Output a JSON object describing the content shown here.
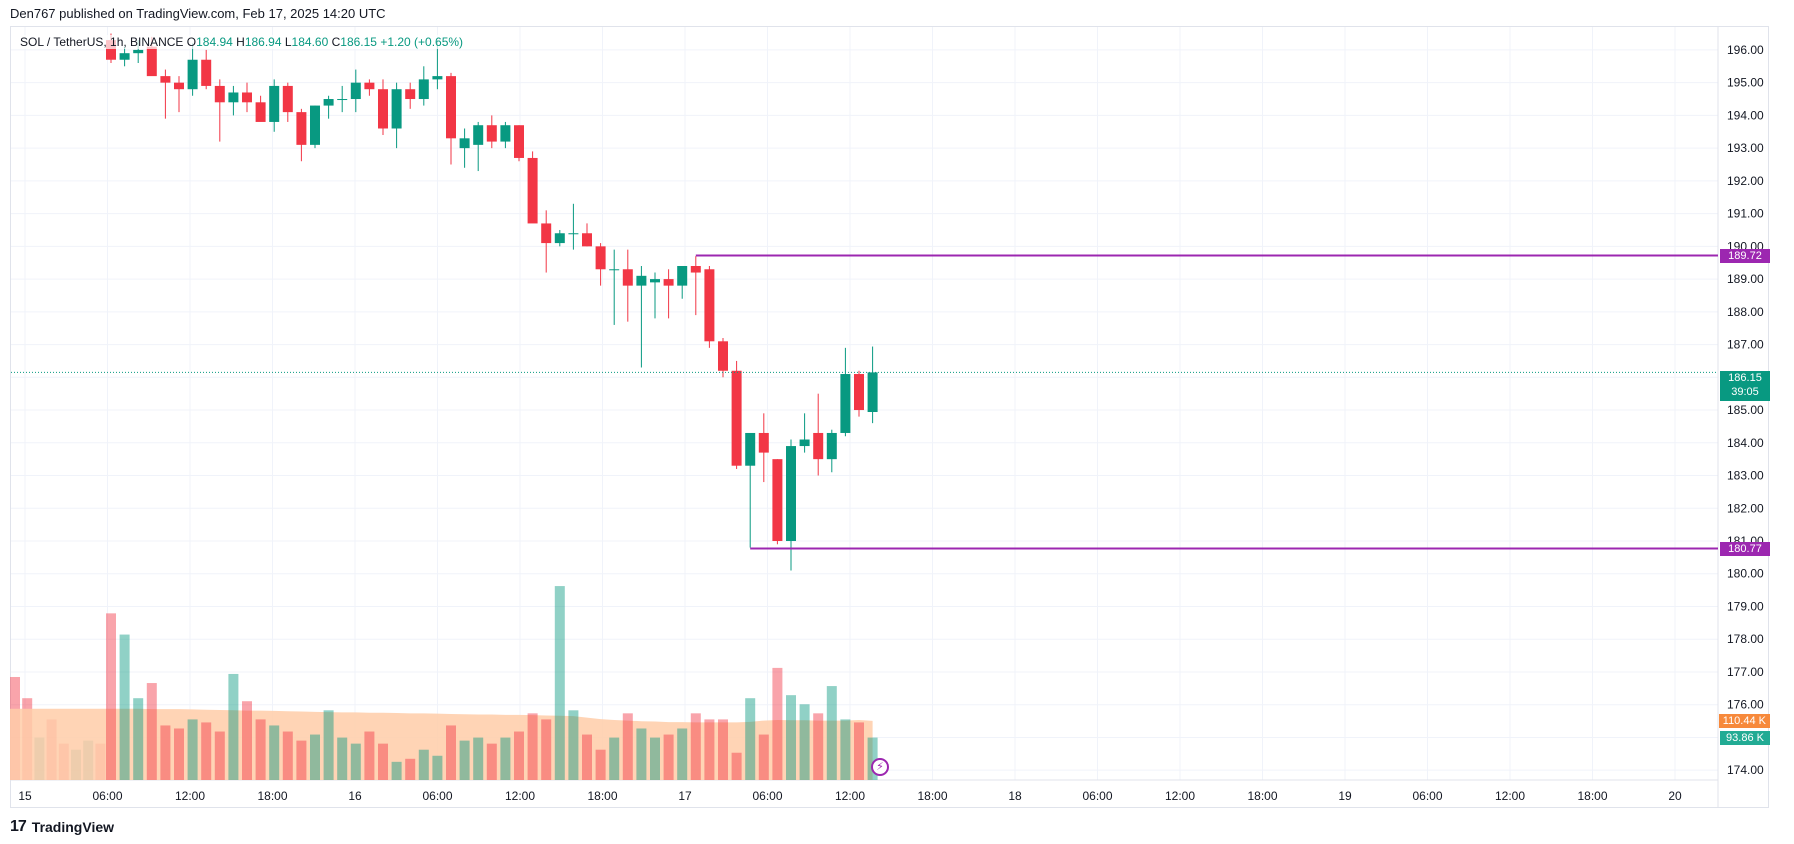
{
  "header": {
    "publisher_line": "Den767 published on TradingView.com, Feb 17, 2025 14:20 UTC"
  },
  "legend": {
    "symbol": "SOL / TetherUS, 1h, BINANCE",
    "open_label": "O",
    "open": "184.94",
    "high_label": "H",
    "high": "186.94",
    "low_label": "L",
    "low": "184.60",
    "close_label": "C",
    "close": "186.15",
    "change": "+1.20 (+0.65%)"
  },
  "footer": {
    "brand": "TradingView",
    "logo_glyph": "17"
  },
  "colors": {
    "up": "#089981",
    "down": "#f23645",
    "level_line": "#9c27b0",
    "volume_ma": "#ffcca8",
    "volume_ma_tag": "#f7893b",
    "grid": "#f0f3fa"
  },
  "chart_data": {
    "type": "candlestick",
    "symbol": "SOL / TetherUS",
    "interval": "1h",
    "exchange": "BINANCE",
    "ylim": [
      173.7,
      196.7
    ],
    "y_ticks": [
      "196.00",
      "195.00",
      "194.00",
      "193.00",
      "192.00",
      "191.00",
      "190.00",
      "189.00",
      "188.00",
      "187.00",
      "186.00",
      "185.00",
      "184.00",
      "183.00",
      "182.00",
      "181.00",
      "180.00",
      "179.00",
      "178.00",
      "177.00",
      "176.00",
      "175.00",
      "174.00"
    ],
    "x_ticks": [
      "15",
      "06:00",
      "12:00",
      "18:00",
      "16",
      "06:00",
      "12:00",
      "18:00",
      "17",
      "06:00",
      "12:00",
      "18:00",
      "18",
      "06:00",
      "12:00",
      "18:00",
      "19",
      "06:00",
      "12:00",
      "18:00",
      "20"
    ],
    "grid": true,
    "candles": [
      {
        "o": 196.3,
        "h": 196.5,
        "l": 195.6,
        "c": 195.7
      },
      {
        "o": 195.7,
        "h": 196.1,
        "l": 195.5,
        "c": 195.9
      },
      {
        "o": 195.9,
        "h": 196.3,
        "l": 195.6,
        "c": 196.0
      },
      {
        "o": 196.1,
        "h": 196.4,
        "l": 195.4,
        "c": 195.2
      },
      {
        "o": 195.2,
        "h": 195.4,
        "l": 193.9,
        "c": 195.0
      },
      {
        "o": 195.0,
        "h": 195.2,
        "l": 194.1,
        "c": 194.8
      },
      {
        "o": 194.8,
        "h": 196.2,
        "l": 194.6,
        "c": 195.7
      },
      {
        "o": 195.7,
        "h": 196.0,
        "l": 194.8,
        "c": 194.9
      },
      {
        "o": 194.9,
        "h": 195.1,
        "l": 193.2,
        "c": 194.4
      },
      {
        "o": 194.4,
        "h": 194.9,
        "l": 194.0,
        "c": 194.7
      },
      {
        "o": 194.7,
        "h": 195.0,
        "l": 194.1,
        "c": 194.4
      },
      {
        "o": 194.4,
        "h": 194.6,
        "l": 193.9,
        "c": 193.8
      },
      {
        "o": 193.8,
        "h": 195.1,
        "l": 193.5,
        "c": 194.9
      },
      {
        "o": 194.9,
        "h": 195.0,
        "l": 193.8,
        "c": 194.1
      },
      {
        "o": 194.1,
        "h": 194.2,
        "l": 192.6,
        "c": 193.1
      },
      {
        "o": 193.1,
        "h": 194.3,
        "l": 193.0,
        "c": 194.3
      },
      {
        "o": 194.3,
        "h": 194.6,
        "l": 193.9,
        "c": 194.5
      },
      {
        "o": 194.5,
        "h": 194.9,
        "l": 194.1,
        "c": 194.5
      },
      {
        "o": 194.5,
        "h": 195.4,
        "l": 194.1,
        "c": 195.0
      },
      {
        "o": 195.0,
        "h": 195.1,
        "l": 194.6,
        "c": 194.8
      },
      {
        "o": 194.8,
        "h": 195.1,
        "l": 193.4,
        "c": 193.6
      },
      {
        "o": 193.6,
        "h": 195.0,
        "l": 193.0,
        "c": 194.8
      },
      {
        "o": 194.8,
        "h": 195.0,
        "l": 194.2,
        "c": 194.5
      },
      {
        "o": 194.5,
        "h": 195.5,
        "l": 194.3,
        "c": 195.1
      },
      {
        "o": 195.1,
        "h": 196.3,
        "l": 194.8,
        "c": 195.2
      },
      {
        "o": 195.2,
        "h": 195.3,
        "l": 192.5,
        "c": 193.3
      },
      {
        "o": 193.0,
        "h": 193.6,
        "l": 192.4,
        "c": 193.3
      },
      {
        "o": 193.1,
        "h": 193.8,
        "l": 192.3,
        "c": 193.7
      },
      {
        "o": 193.7,
        "h": 194.0,
        "l": 193.0,
        "c": 193.2
      },
      {
        "o": 193.2,
        "h": 193.8,
        "l": 193.0,
        "c": 193.7
      },
      {
        "o": 193.7,
        "h": 193.7,
        "l": 192.6,
        "c": 192.7
      },
      {
        "o": 192.7,
        "h": 192.9,
        "l": 190.8,
        "c": 190.7
      },
      {
        "o": 190.7,
        "h": 191.1,
        "l": 189.2,
        "c": 190.1
      },
      {
        "o": 190.1,
        "h": 190.5,
        "l": 190.0,
        "c": 190.4
      },
      {
        "o": 190.4,
        "h": 191.3,
        "l": 189.9,
        "c": 190.4
      },
      {
        "o": 190.4,
        "h": 190.7,
        "l": 190.0,
        "c": 190.0
      },
      {
        "o": 190.0,
        "h": 190.1,
        "l": 188.8,
        "c": 189.3
      },
      {
        "o": 189.3,
        "h": 189.9,
        "l": 187.6,
        "c": 189.3
      },
      {
        "o": 189.3,
        "h": 189.9,
        "l": 187.7,
        "c": 188.8
      },
      {
        "o": 188.8,
        "h": 189.4,
        "l": 186.3,
        "c": 189.1
      },
      {
        "o": 188.9,
        "h": 189.2,
        "l": 187.8,
        "c": 189.0
      },
      {
        "o": 189.0,
        "h": 189.3,
        "l": 187.8,
        "c": 188.8
      },
      {
        "o": 188.8,
        "h": 189.2,
        "l": 188.4,
        "c": 189.4
      },
      {
        "o": 189.4,
        "h": 189.7,
        "l": 187.9,
        "c": 189.2
      },
      {
        "o": 189.3,
        "h": 189.4,
        "l": 186.9,
        "c": 187.1
      },
      {
        "o": 187.1,
        "h": 187.2,
        "l": 186.0,
        "c": 186.2
      },
      {
        "o": 186.2,
        "h": 186.5,
        "l": 183.2,
        "c": 183.3
      },
      {
        "o": 183.3,
        "h": 184.2,
        "l": 180.8,
        "c": 184.3
      },
      {
        "o": 184.3,
        "h": 184.9,
        "l": 182.8,
        "c": 183.7
      },
      {
        "o": 183.5,
        "h": 183.5,
        "l": 180.9,
        "c": 181.0
      },
      {
        "o": 181.0,
        "h": 184.1,
        "l": 180.1,
        "c": 183.9
      },
      {
        "o": 183.9,
        "h": 184.9,
        "l": 183.7,
        "c": 184.1
      },
      {
        "o": 184.3,
        "h": 185.5,
        "l": 183.0,
        "c": 183.5
      },
      {
        "o": 183.5,
        "h": 184.4,
        "l": 183.1,
        "c": 184.3
      },
      {
        "o": 184.3,
        "h": 186.9,
        "l": 184.2,
        "c": 186.1
      },
      {
        "o": 186.1,
        "h": 186.2,
        "l": 184.8,
        "c": 185.0
      },
      {
        "o": 184.94,
        "h": 186.94,
        "l": 184.6,
        "c": 186.15
      }
    ],
    "volume": [
      55,
      48,
      27,
      32,
      18,
      17,
      20,
      19,
      16,
      35,
      26,
      20,
      18,
      16,
      13,
      15,
      23,
      14,
      12,
      16,
      12,
      6,
      7,
      10,
      8,
      18,
      13,
      14,
      12,
      14,
      16,
      22,
      20,
      64,
      23,
      15,
      10,
      14,
      22,
      17,
      14,
      15,
      17,
      22,
      20,
      20,
      9,
      27,
      15,
      37,
      28,
      25,
      22,
      31,
      20,
      19,
      14
    ],
    "volume_ma_values": [
      23.5,
      23.5,
      23.5,
      23.4,
      23.4,
      23.4,
      23.3,
      23.2,
      23.1,
      23.0,
      22.9,
      22.9,
      22.8,
      22.7,
      22.6,
      22.5,
      22.4,
      22.3,
      22.3,
      22.2,
      22.2,
      22.1,
      22.0,
      22.0,
      21.9,
      21.8,
      21.7,
      21.6,
      21.6,
      21.5,
      21.5,
      21.4,
      21.3,
      21.2,
      21.1,
      20.6,
      20.1,
      19.8,
      19.6,
      19.4,
      19.3,
      19.1,
      19.1,
      19.0,
      19.0,
      19.0,
      19.0,
      19.2,
      19.6,
      19.8,
      19.7,
      19.7,
      19.6,
      19.6,
      19.6,
      19.8,
      19.5
    ],
    "levels": [
      {
        "value": 189.72,
        "label": "189.72",
        "start_index": 43
      },
      {
        "value": 180.77,
        "label": "180.77",
        "start_index": 47
      }
    ],
    "last_price": {
      "label": "186.15",
      "countdown": "39:05",
      "value": 186.15
    },
    "volume_tags": {
      "volume_ma": "110.44 K",
      "volume": "93.86 K"
    }
  }
}
